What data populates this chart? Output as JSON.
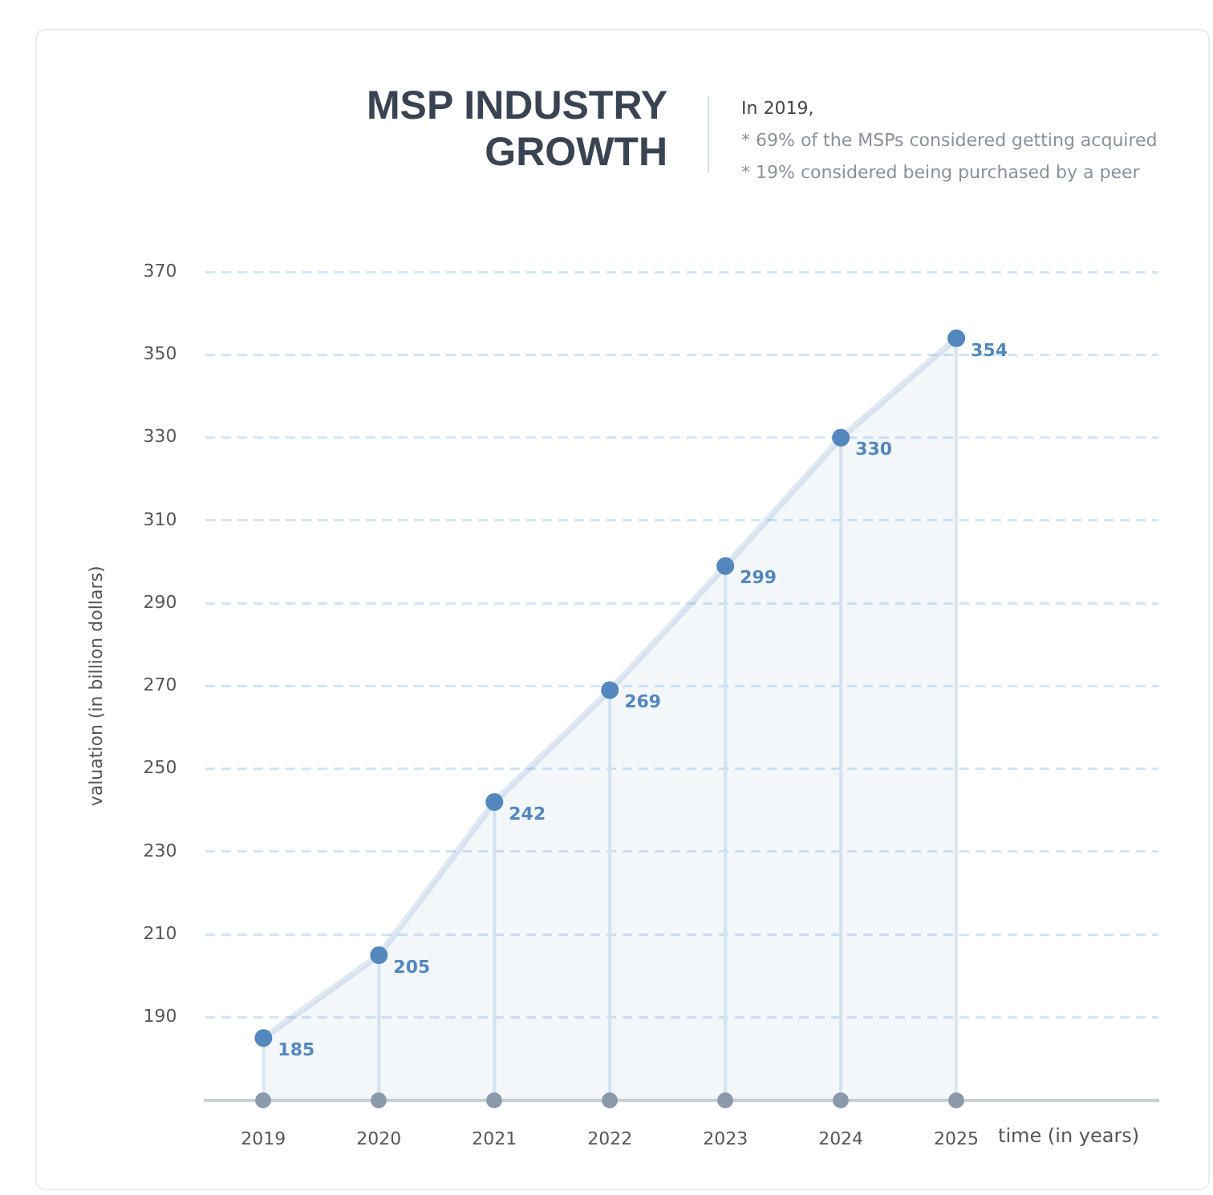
{
  "chart_data": {
    "type": "area",
    "title": "MSP INDUSTRY GROWTH",
    "annotations": [
      "In 2019,",
      "* 69% of the MSPs considered getting acquired",
      "* 19% considered being purchased by a peer"
    ],
    "xlabel": "time (in years)",
    "ylabel": "valuation (in billion dollars)",
    "categories": [
      "2019",
      "2020",
      "2021",
      "2022",
      "2023",
      "2024",
      "2025"
    ],
    "series": [
      {
        "color": "#5387bd",
        "values": [
          185,
          205,
          242,
          269,
          299,
          330,
          354
        ]
      }
    ],
    "ylim": [
      170,
      370
    ],
    "yticks": [
      190,
      210,
      230,
      250,
      270,
      290,
      310,
      330,
      350,
      370
    ],
    "grid": true,
    "marker": "circle",
    "data_labels": true
  }
}
